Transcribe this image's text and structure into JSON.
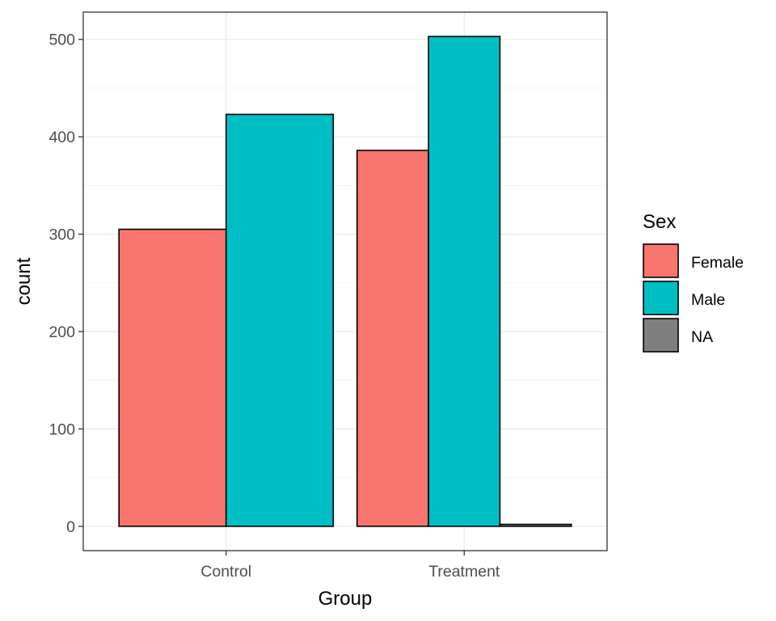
{
  "chart_data": {
    "type": "bar",
    "categories": [
      "Control",
      "Treatment"
    ],
    "series": [
      {
        "name": "Female",
        "values": [
          305,
          386
        ],
        "color": "#F8766D"
      },
      {
        "name": "Male",
        "values": [
          423,
          503
        ],
        "color": "#00BFC4"
      },
      {
        "name": "NA",
        "values": [
          null,
          2
        ],
        "color": "#7F7F7F"
      }
    ],
    "xlabel": "Group",
    "ylabel": "count",
    "ylim": [
      -25,
      528
    ],
    "yticks": [
      0,
      100,
      200,
      300,
      400,
      500
    ],
    "legend": {
      "title": "Sex",
      "position": "right"
    },
    "grid": true
  }
}
